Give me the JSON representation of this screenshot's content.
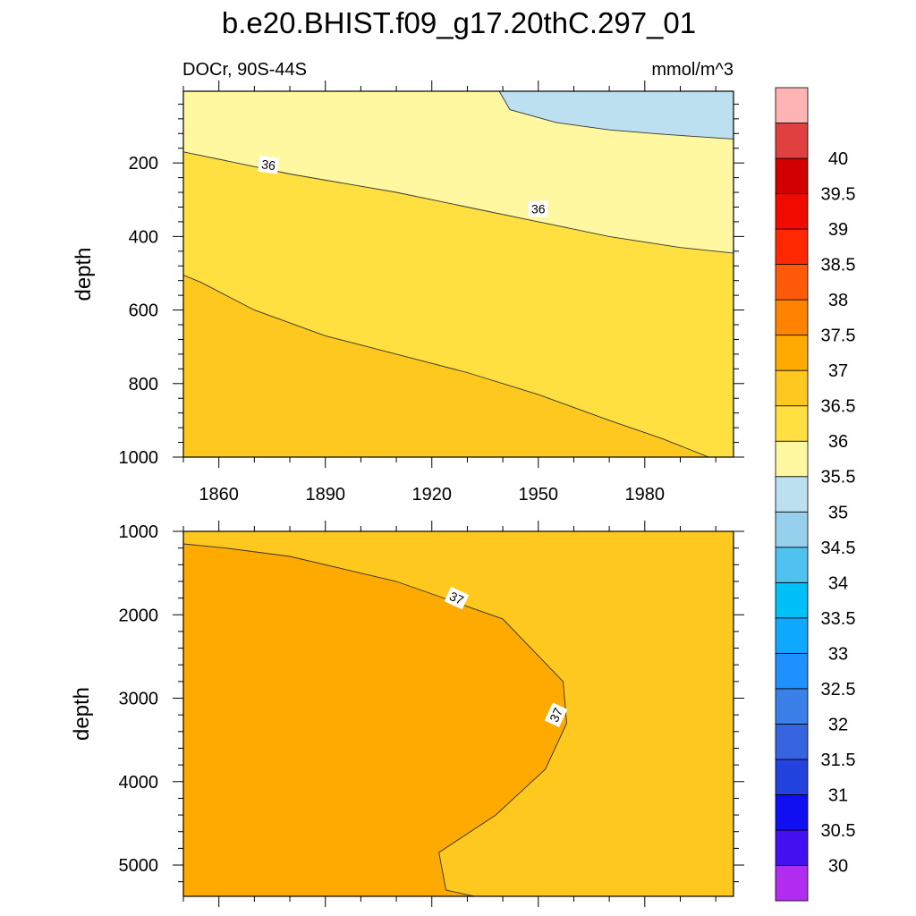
{
  "chart_data": {
    "type": "contour",
    "title": "b.e20.BHIST.f09_g17.20thC.297_01",
    "subtitle_left": "DOCr, 90S-44S",
    "subtitle_right": "mmol/m^3",
    "x_tick_labels": [
      "1860",
      "1890",
      "1920",
      "1950",
      "1980"
    ],
    "x_ticks": [
      1860,
      1890,
      1920,
      1950,
      1980
    ],
    "xlim": [
      1850,
      2005
    ],
    "panels": [
      {
        "name": "upper",
        "ylabel": "depth",
        "ylim": [
          5,
          1000
        ],
        "y_ticks": [
          200,
          400,
          600,
          800,
          1000
        ],
        "y_tick_labels": [
          "200",
          "400",
          "600",
          "800",
          "1000"
        ],
        "regions": [
          {
            "level": "35-35.5",
            "boundary": [
              [
                1939,
                5
              ],
              [
                1942,
                55
              ],
              [
                1955,
                90
              ],
              [
                1970,
                110
              ],
              [
                1985,
                122
              ],
              [
                2005,
                135
              ],
              [
                2005,
                5
              ]
            ]
          },
          {
            "level": "35.5-36",
            "boundary": [
              [
                1850,
                5
              ],
              [
                1935,
                5
              ],
              [
                1939,
                5
              ],
              [
                1942,
                55
              ],
              [
                1955,
                90
              ],
              [
                1970,
                110
              ],
              [
                1985,
                122
              ],
              [
                2005,
                135
              ],
              [
                2005,
                445
              ],
              [
                1990,
                430
              ],
              [
                1970,
                400
              ],
              [
                1950,
                360
              ],
              [
                1930,
                320
              ],
              [
                1910,
                280
              ],
              [
                1880,
                230
              ],
              [
                1860,
                190
              ],
              [
                1850,
                170
              ]
            ]
          },
          {
            "level": "36-36.5",
            "boundary": [
              [
                1850,
                170
              ],
              [
                1860,
                190
              ],
              [
                1880,
                230
              ],
              [
                1910,
                280
              ],
              [
                1930,
                320
              ],
              [
                1950,
                360
              ],
              [
                1970,
                400
              ],
              [
                1990,
                430
              ],
              [
                2005,
                445
              ],
              [
                2005,
                1000
              ],
              [
                1998,
                1000
              ],
              [
                1985,
                950
              ],
              [
                1970,
                900
              ],
              [
                1950,
                830
              ],
              [
                1930,
                770
              ],
              [
                1910,
                720
              ],
              [
                1890,
                670
              ],
              [
                1870,
                600
              ],
              [
                1855,
                525
              ],
              [
                1850,
                505
              ]
            ]
          },
          {
            "level": "36.5-37",
            "boundary": [
              [
                1850,
                505
              ],
              [
                1855,
                525
              ],
              [
                1870,
                600
              ],
              [
                1890,
                670
              ],
              [
                1910,
                720
              ],
              [
                1930,
                770
              ],
              [
                1950,
                830
              ],
              [
                1970,
                900
              ],
              [
                1985,
                950
              ],
              [
                1998,
                1000
              ],
              [
                1850,
                1000
              ]
            ]
          }
        ],
        "contour_lines": [
          {
            "level": 35.5,
            "points": [
              [
                1939,
                5
              ],
              [
                1942,
                55
              ],
              [
                1955,
                90
              ],
              [
                1970,
                110
              ],
              [
                1985,
                122
              ],
              [
                2005,
                135
              ]
            ]
          },
          {
            "level": 36,
            "points": [
              [
                1850,
                170
              ],
              [
                1860,
                190
              ],
              [
                1880,
                230
              ],
              [
                1910,
                280
              ],
              [
                1930,
                320
              ],
              [
                1950,
                360
              ],
              [
                1970,
                400
              ],
              [
                1990,
                430
              ],
              [
                2005,
                445
              ]
            ]
          },
          {
            "level": 36.5,
            "points": [
              [
                1850,
                505
              ],
              [
                1855,
                525
              ],
              [
                1870,
                600
              ],
              [
                1890,
                670
              ],
              [
                1910,
                720
              ],
              [
                1930,
                770
              ],
              [
                1950,
                830
              ],
              [
                1970,
                900
              ],
              [
                1985,
                950
              ],
              [
                1998,
                1000
              ]
            ]
          }
        ],
        "line_labels": [
          {
            "text": "36",
            "x": 1874,
            "y": 205,
            "angle": 8
          },
          {
            "text": "36",
            "x": 1950,
            "y": 325,
            "angle": 0
          }
        ]
      },
      {
        "name": "lower",
        "ylabel": "depth",
        "ylim": [
          1000,
          5375
        ],
        "y_ticks": [
          1000,
          2000,
          3000,
          4000,
          5000
        ],
        "y_tick_labels": [
          "1000",
          "2000",
          "3000",
          "4000",
          "5000"
        ],
        "regions": [
          {
            "level": "36.5-37",
            "boundary": [
              [
                1850,
                1000
              ],
              [
                2005,
                1000
              ],
              [
                2005,
                5375
              ],
              [
                1932,
                5375
              ],
              [
                1924,
                5300
              ],
              [
                1922,
                4850
              ],
              [
                1938,
                4400
              ],
              [
                1952,
                3850
              ],
              [
                1958,
                3300
              ],
              [
                1957,
                2800
              ],
              [
                1940,
                2050
              ],
              [
                1910,
                1600
              ],
              [
                1880,
                1300
              ],
              [
                1862,
                1200
              ],
              [
                1850,
                1150
              ]
            ]
          },
          {
            "level": "37-37.5",
            "boundary": [
              [
                1850,
                1150
              ],
              [
                1862,
                1200
              ],
              [
                1880,
                1300
              ],
              [
                1910,
                1600
              ],
              [
                1940,
                2050
              ],
              [
                1957,
                2800
              ],
              [
                1958,
                3300
              ],
              [
                1952,
                3850
              ],
              [
                1938,
                4400
              ],
              [
                1922,
                4850
              ],
              [
                1924,
                5300
              ],
              [
                1932,
                5375
              ],
              [
                1850,
                5375
              ]
            ]
          }
        ],
        "contour_lines": [
          {
            "level": 37,
            "points": [
              [
                1850,
                1150
              ],
              [
                1862,
                1200
              ],
              [
                1880,
                1300
              ],
              [
                1910,
                1600
              ],
              [
                1940,
                2050
              ],
              [
                1957,
                2800
              ],
              [
                1958,
                3300
              ],
              [
                1952,
                3850
              ],
              [
                1938,
                4400
              ],
              [
                1922,
                4850
              ],
              [
                1924,
                5300
              ],
              [
                1932,
                5375
              ]
            ]
          }
        ],
        "line_labels": [
          {
            "text": "37",
            "x": 1927,
            "y": 1800,
            "angle": 25
          },
          {
            "text": "37",
            "x": 1955,
            "y": 3200,
            "angle": -65
          }
        ]
      }
    ],
    "colorbar": {
      "colors": [
        "#B22CF0",
        "#4410F0",
        "#0F0FF2",
        "#2343DE",
        "#3663E0",
        "#3A80E8",
        "#1E90FF",
        "#0FA8FF",
        "#00C0F8",
        "#50C2F0",
        "#96D0EC",
        "#BCE0F0",
        "#FFF8A0",
        "#FFE040",
        "#FFC81E",
        "#FFAA00",
        "#FF8200",
        "#FF5A0A",
        "#FF2800",
        "#F00A00",
        "#D20000",
        "#E04040",
        "#FFB4B4"
      ],
      "labels": [
        "30",
        "30.5",
        "31",
        "31.5",
        "32",
        "32.5",
        "33",
        "33.5",
        "34",
        "34.5",
        "35",
        "35.5",
        "36",
        "36.5",
        "37",
        "37.5",
        "38",
        "38.5",
        "39",
        "39.5",
        "40"
      ]
    }
  }
}
